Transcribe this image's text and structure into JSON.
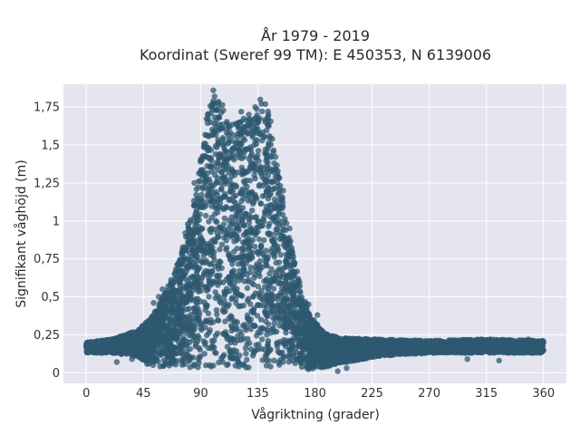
{
  "chart_data": {
    "type": "scatter",
    "title_line1": "År 1979 - 2019",
    "title_line2": "Koordinat (Sweref 99 TM): E 450353, N 6139006",
    "xlabel": "Vågriktning (grader)",
    "ylabel": "Signifikant våghöjd (m)",
    "xlim": [
      -18,
      378
    ],
    "ylim": [
      -0.07,
      1.9
    ],
    "x_ticks": [
      0,
      45,
      90,
      135,
      180,
      225,
      270,
      315,
      360
    ],
    "x_tick_labels": [
      "0",
      "45",
      "90",
      "135",
      "180",
      "225",
      "270",
      "315",
      "360"
    ],
    "y_ticks": [
      0,
      0.25,
      0.5,
      0.75,
      1,
      1.25,
      1.5,
      1.75
    ],
    "y_tick_labels": [
      "0",
      "0,25",
      "0,5",
      "0,75",
      "1",
      "1,25",
      "1,5",
      "1,75"
    ],
    "grid": true,
    "legend": "none",
    "colors": {
      "marker": "#2e5870",
      "plot_bg": "#e5e5f0",
      "grid": "#ffffff"
    },
    "envelope": {
      "description_x": "direction in degrees",
      "upper": [
        [
          0,
          0.2
        ],
        [
          20,
          0.22
        ],
        [
          40,
          0.28
        ],
        [
          50,
          0.35
        ],
        [
          55,
          0.42
        ],
        [
          60,
          0.5
        ],
        [
          65,
          0.58
        ],
        [
          70,
          0.68
        ],
        [
          75,
          0.8
        ],
        [
          80,
          0.95
        ],
        [
          85,
          1.15
        ],
        [
          88,
          1.3
        ],
        [
          92,
          1.5
        ],
        [
          95,
          1.7
        ],
        [
          100,
          1.82
        ],
        [
          105,
          1.8
        ],
        [
          110,
          1.72
        ],
        [
          120,
          1.66
        ],
        [
          130,
          1.7
        ],
        [
          138,
          1.78
        ],
        [
          145,
          1.7
        ],
        [
          150,
          1.4
        ],
        [
          155,
          1.15
        ],
        [
          160,
          0.9
        ],
        [
          165,
          0.7
        ],
        [
          170,
          0.55
        ],
        [
          175,
          0.4
        ],
        [
          180,
          0.34
        ],
        [
          185,
          0.28
        ],
        [
          190,
          0.25
        ],
        [
          200,
          0.23
        ],
        [
          230,
          0.22
        ],
        [
          270,
          0.21
        ],
        [
          315,
          0.22
        ],
        [
          360,
          0.21
        ]
      ],
      "lower": [
        [
          0,
          0.13
        ],
        [
          20,
          0.13
        ],
        [
          40,
          0.11
        ],
        [
          50,
          0.04
        ],
        [
          90,
          0.03
        ],
        [
          135,
          0.03
        ],
        [
          180,
          0.02
        ],
        [
          200,
          0.06
        ],
        [
          230,
          0.11
        ],
        [
          270,
          0.13
        ],
        [
          360,
          0.13
        ]
      ]
    },
    "peak_points": [
      [
        100,
        1.86
      ],
      [
        101,
        1.82
      ],
      [
        100,
        1.79
      ],
      [
        99,
        1.76
      ],
      [
        137,
        1.8
      ],
      [
        141,
        1.77
      ],
      [
        133,
        1.75
      ],
      [
        122,
        1.72
      ],
      [
        128,
        1.7
      ],
      [
        102,
        1.73
      ],
      [
        90,
        1.4
      ],
      [
        85,
        1.25
      ],
      [
        155,
        1.2
      ],
      [
        160,
        0.95
      ],
      [
        80,
        0.98
      ],
      [
        78,
        0.92
      ],
      [
        70,
        0.62
      ],
      [
        68,
        0.55
      ],
      [
        175,
        0.45
      ],
      [
        182,
        0.38
      ],
      [
        57,
        0.5
      ],
      [
        53,
        0.46
      ],
      [
        47,
        0.33
      ],
      [
        45,
        0.29
      ],
      [
        60,
        0.55
      ]
    ],
    "sparse_points": [
      [
        2,
        0.18
      ],
      [
        6,
        0.16
      ],
      [
        10,
        0.19
      ],
      [
        14,
        0.17
      ],
      [
        18,
        0.18
      ],
      [
        22,
        0.2
      ],
      [
        26,
        0.16
      ],
      [
        30,
        0.18
      ],
      [
        34,
        0.21
      ],
      [
        38,
        0.19
      ],
      [
        42,
        0.22
      ],
      [
        24,
        0.07
      ],
      [
        36,
        0.09
      ],
      [
        198,
        0.01
      ],
      [
        205,
        0.03
      ],
      [
        210,
        0.12
      ],
      [
        215,
        0.15
      ],
      [
        220,
        0.22
      ],
      [
        230,
        0.14
      ],
      [
        240,
        0.18
      ],
      [
        250,
        0.17
      ],
      [
        260,
        0.15
      ],
      [
        275,
        0.18
      ],
      [
        290,
        0.16
      ],
      [
        300,
        0.09
      ],
      [
        305,
        0.21
      ],
      [
        318,
        0.22
      ],
      [
        325,
        0.08
      ],
      [
        330,
        0.16
      ],
      [
        340,
        0.17
      ],
      [
        348,
        0.22
      ],
      [
        352,
        0.14
      ],
      [
        356,
        0.19
      ],
      [
        359,
        0.16
      ]
    ]
  }
}
